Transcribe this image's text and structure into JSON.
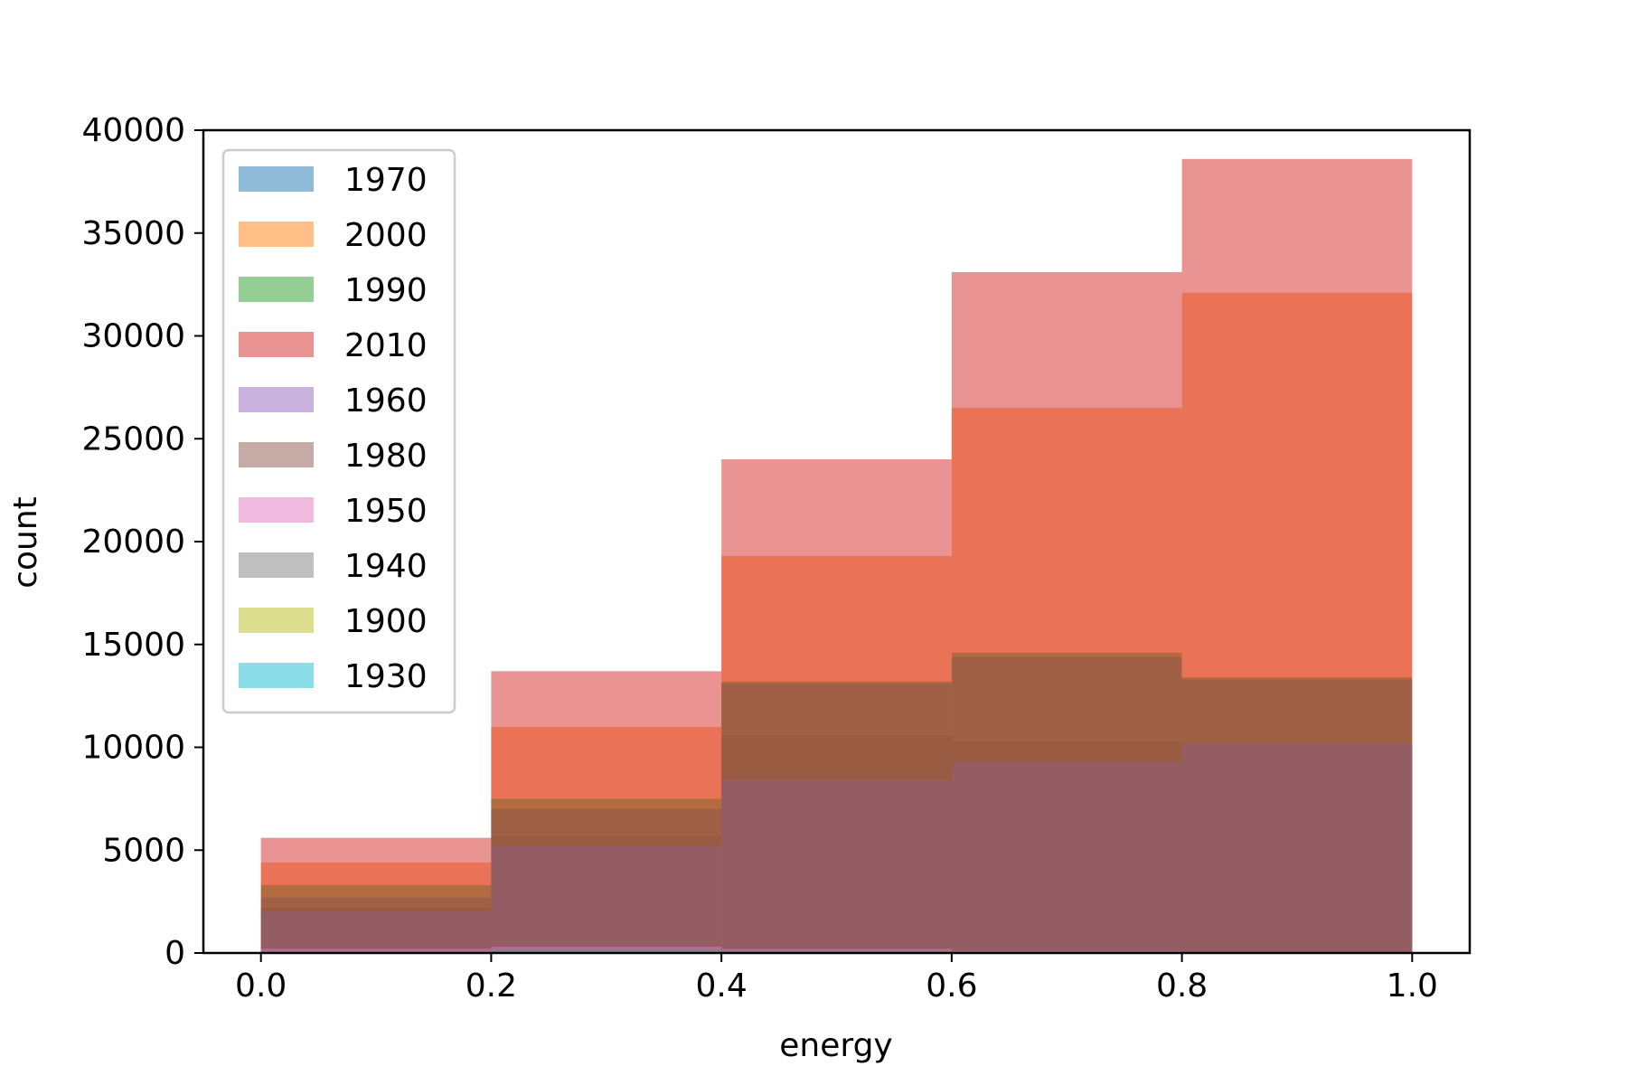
{
  "chart_data": {
    "type": "histogram",
    "title": "",
    "xlabel": "energy",
    "ylabel": "count",
    "xlim": [
      -0.05,
      1.05
    ],
    "ylim": [
      0,
      40000
    ],
    "bin_edges": [
      0.0,
      0.2,
      0.4,
      0.6,
      0.8,
      1.0
    ],
    "x_ticks": [
      "0.0",
      "0.2",
      "0.4",
      "0.6",
      "0.8",
      "1.0"
    ],
    "y_ticks": [
      "0",
      "5000",
      "10000",
      "15000",
      "20000",
      "25000",
      "30000",
      "35000",
      "40000"
    ],
    "x_tick_values": [
      0.0,
      0.2,
      0.4,
      0.6,
      0.8,
      1.0
    ],
    "y_tick_values": [
      0,
      5000,
      10000,
      15000,
      20000,
      25000,
      30000,
      35000,
      40000
    ],
    "legend_position": "top-left",
    "opacity": 0.5,
    "series": [
      {
        "name": "1970",
        "color": "#1f77b4",
        "values": [
          2200,
          5700,
          10600,
          10300,
          10200
        ]
      },
      {
        "name": "2000",
        "color": "#ff7f0e",
        "values": [
          4400,
          11000,
          19300,
          26500,
          32100
        ]
      },
      {
        "name": "1990",
        "color": "#2ca02c",
        "values": [
          3300,
          7500,
          13200,
          14600,
          13400
        ]
      },
      {
        "name": "2010",
        "color": "#d62728",
        "values": [
          5600,
          13700,
          24000,
          33100,
          38600
        ]
      },
      {
        "name": "1960",
        "color": "#9467bd",
        "values": [
          2000,
          5200,
          8400,
          9300,
          10200
        ]
      },
      {
        "name": "1980",
        "color": "#8c564b",
        "values": [
          2700,
          7000,
          13100,
          14400,
          13300
        ]
      },
      {
        "name": "1950",
        "color": "#e377c2",
        "values": [
          200,
          300,
          200,
          100,
          50
        ]
      },
      {
        "name": "1940",
        "color": "#7f7f7f",
        "values": [
          100,
          200,
          150,
          80,
          40
        ]
      },
      {
        "name": "1900",
        "color": "#bcbd22",
        "values": [
          30,
          60,
          40,
          20,
          10
        ]
      },
      {
        "name": "1930",
        "color": "#17becf",
        "values": [
          50,
          80,
          60,
          30,
          15
        ]
      }
    ]
  }
}
